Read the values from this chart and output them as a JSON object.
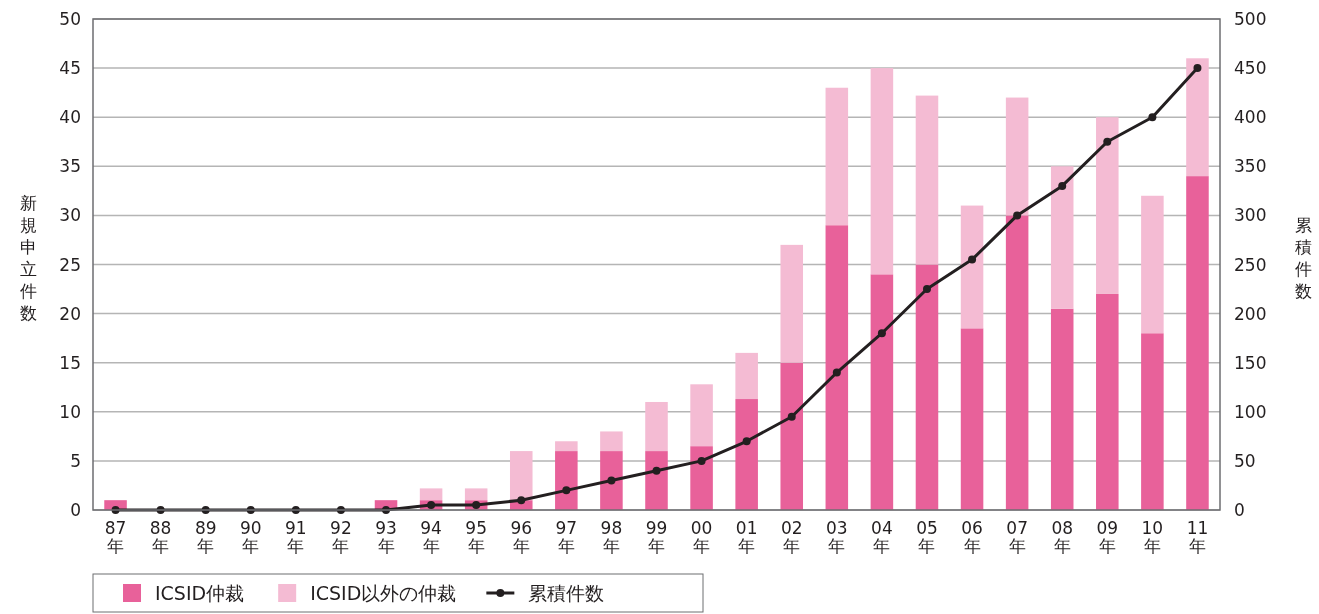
{
  "chart_data": {
    "type": "bar",
    "stacked": true,
    "categories": [
      "87年",
      "88年",
      "89年",
      "90年",
      "91年",
      "92年",
      "93年",
      "94年",
      "95年",
      "96年",
      "97年",
      "98年",
      "99年",
      "00年",
      "01年",
      "02年",
      "03年",
      "04年",
      "05年",
      "06年",
      "07年",
      "08年",
      "09年",
      "10年",
      "11年"
    ],
    "series": [
      {
        "name": "ICSID仲裁",
        "color": "#e8619a",
        "values": [
          1,
          0,
          0,
          0,
          0,
          0,
          1,
          1,
          1,
          1,
          6,
          6,
          6,
          6.5,
          11.3,
          15,
          29,
          24,
          25,
          18.5,
          30,
          20.5,
          22,
          18,
          34
        ]
      },
      {
        "name": "ICSID以外の仲裁",
        "color": "#f4bbd3",
        "values": [
          0,
          0,
          0,
          0,
          0,
          0,
          0,
          1.2,
          1.2,
          5,
          1,
          2,
          5,
          6.3,
          4.7,
          12,
          14,
          21,
          17.2,
          12.5,
          12,
          14.5,
          18,
          14,
          12
        ]
      },
      {
        "name": "累積件数",
        "type": "line",
        "axis": "y2",
        "color": "#231f20",
        "values": [
          0,
          0,
          0,
          0,
          0,
          0,
          0,
          5,
          5,
          10,
          20,
          30,
          40,
          50,
          70,
          95,
          140,
          180,
          225,
          255,
          300,
          330,
          375,
          400,
          450
        ]
      }
    ],
    "ylabel": "新規申立件数",
    "y2label": "累積件数",
    "ylim": [
      0,
      50
    ],
    "yticks": [
      0,
      5,
      10,
      15,
      20,
      25,
      30,
      35,
      40,
      45,
      50
    ],
    "y2lim": [
      0,
      500
    ],
    "y2ticks": [
      0,
      50,
      100,
      150,
      200,
      250,
      300,
      350,
      400,
      450,
      500
    ],
    "grid": "y",
    "legend": "bottom",
    "marker": "circle",
    "line_style": "solid"
  }
}
